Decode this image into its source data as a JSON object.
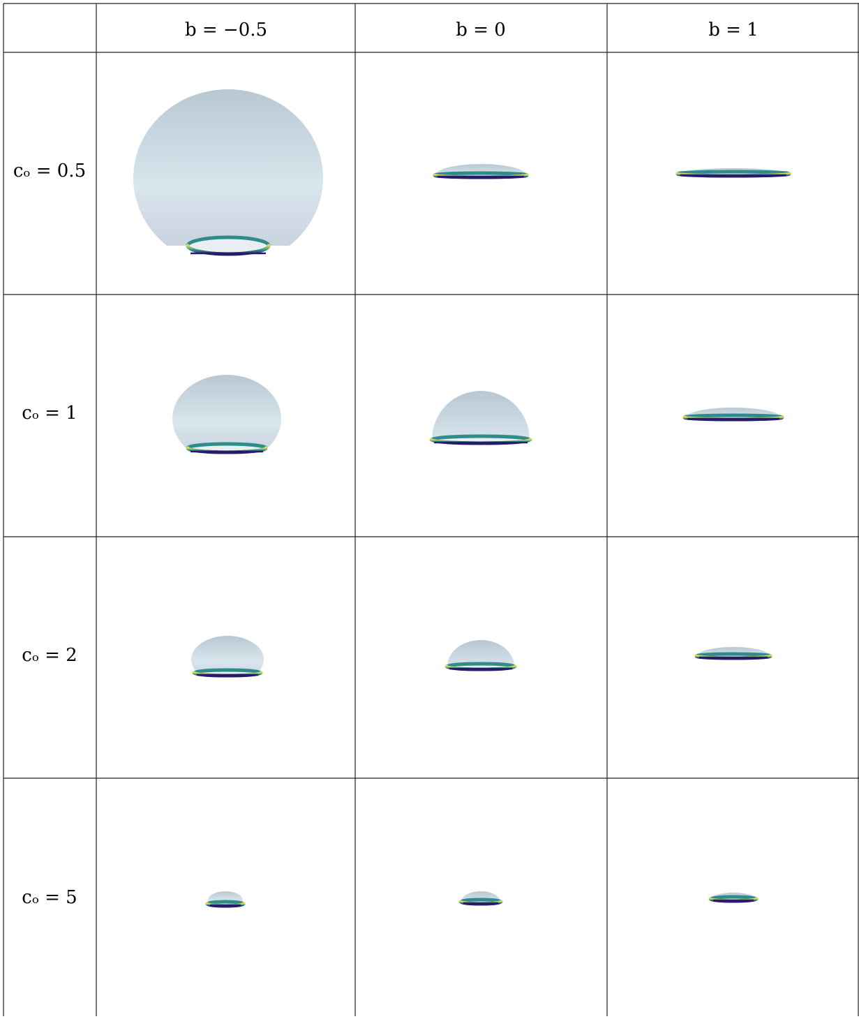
{
  "table": {
    "column_headers": [
      "b = −0.5",
      "b = 0",
      "b = 1"
    ],
    "row_labels": [
      "cₒ = 0.5",
      "cₒ = 1",
      "cₒ = 2",
      "cₒ = 5"
    ]
  }
}
